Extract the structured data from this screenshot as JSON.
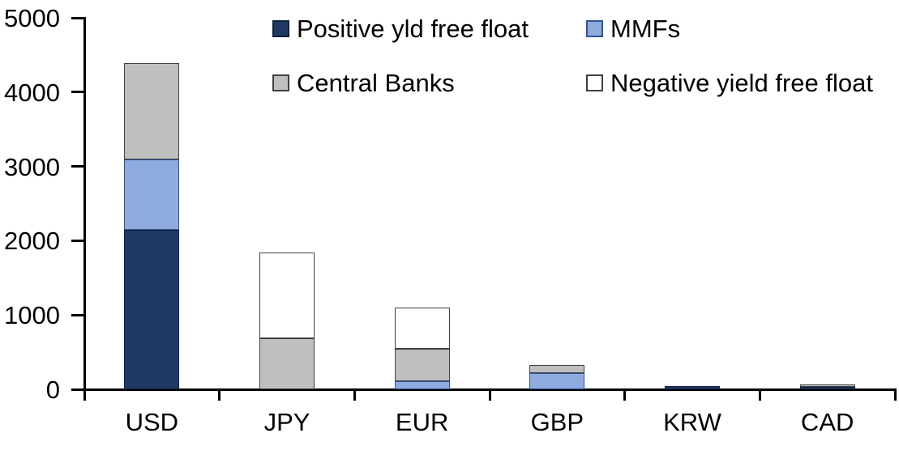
{
  "chart_data": {
    "type": "bar",
    "stacked": true,
    "title": "",
    "xlabel": "",
    "ylabel": "",
    "grid": false,
    "legend_position": "top",
    "categories": [
      "USD",
      "JPY",
      "EUR",
      "GBP",
      "KRW",
      "CAD"
    ],
    "series": [
      {
        "name": "Positive yld free float",
        "color": "#1F3864",
        "border_color": "#10203f",
        "values": [
          2150,
          0,
          0,
          0,
          45,
          30
        ]
      },
      {
        "name": "MMFs",
        "color": "#8FAADC",
        "border_color": "#2E5597",
        "values": [
          940,
          0,
          110,
          220,
          0,
          0
        ]
      },
      {
        "name": "Central Banks",
        "color": "#BFBFBF",
        "border_color": "#404040",
        "values": [
          1300,
          690,
          430,
          110,
          0,
          35
        ]
      },
      {
        "name": "Negative yield free float",
        "color": "#FFFFFF",
        "border_color": "#404040",
        "values": [
          0,
          1150,
          560,
          0,
          0,
          0
        ]
      }
    ],
    "totals": [
      4390,
      1840,
      1100,
      330,
      45,
      65
    ],
    "ylim": [
      0,
      5000
    ],
    "yticks": [
      0,
      1000,
      2000,
      3000,
      4000,
      5000
    ],
    "axis_color": "#000000",
    "text_color": "#000000"
  }
}
